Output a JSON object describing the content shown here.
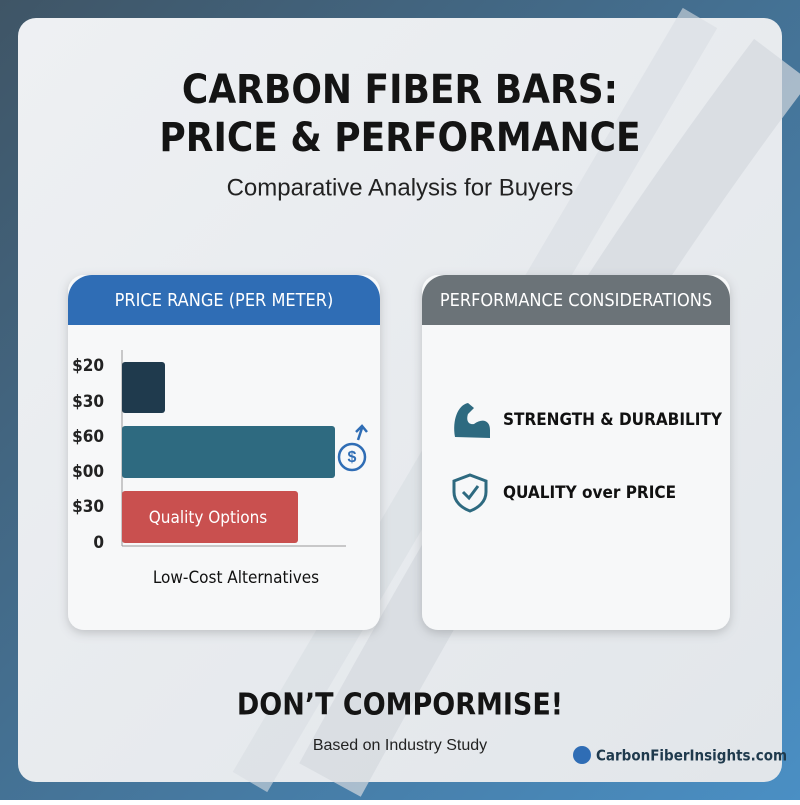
{
  "header": {
    "title_lines": [
      "CARBON FIBER BARS:",
      "PRICE & PERFORMANCE"
    ],
    "subtitle": "Comparative Analysis for Buyers"
  },
  "price_panel": {
    "title": "PRICE RANGE (PER METER)",
    "axis_labels": [
      "$20",
      "$30",
      "$60",
      "$00",
      "$30",
      "0"
    ],
    "bar_label": "Quality Options",
    "caption": "Low-Cost Alternatives"
  },
  "performance_panel": {
    "title": "PERFORMANCE CONSIDERATIONS",
    "items": [
      "STRENGTH & DURABILITY",
      "QUALITY over PRICE"
    ]
  },
  "footer": {
    "headline": "DON’T COMPORMISE!",
    "note": "Based on Industry Study",
    "brand": "CarbonFiberInsights.com"
  }
}
